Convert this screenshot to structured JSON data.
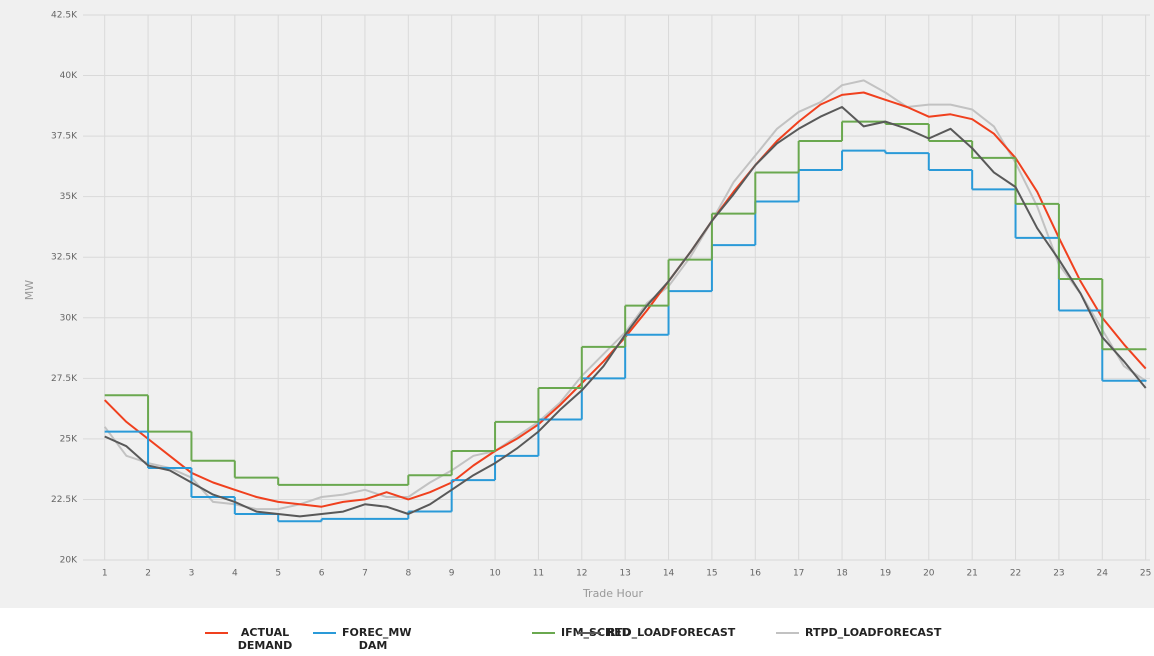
{
  "chart_data": {
    "type": "line",
    "xlabel": "Trade Hour",
    "ylabel": "MW",
    "xlim": [
      0.5,
      25.1
    ],
    "ylim": [
      20000,
      42500
    ],
    "xticks": [
      1,
      2,
      3,
      4,
      5,
      6,
      7,
      8,
      9,
      10,
      11,
      12,
      13,
      14,
      15,
      16,
      17,
      18,
      19,
      20,
      21,
      22,
      23,
      24,
      25
    ],
    "yticks": [
      {
        "value": 20000,
        "label": "20K"
      },
      {
        "value": 22500,
        "label": "22.5K"
      },
      {
        "value": 25000,
        "label": "25K"
      },
      {
        "value": 27500,
        "label": "27.5K"
      },
      {
        "value": 30000,
        "label": "30K"
      },
      {
        "value": 32500,
        "label": "32.5K"
      },
      {
        "value": 35000,
        "label": "35K"
      },
      {
        "value": 37500,
        "label": "37.5K"
      },
      {
        "value": 40000,
        "label": "40K"
      },
      {
        "value": 42500,
        "label": "42.5K"
      }
    ],
    "grid": true,
    "legend": "bottom",
    "series": [
      {
        "name": "ACTUAL DEMAND",
        "color": "#f0401e",
        "drawstyle": "default",
        "x": [
          1,
          1.5,
          2,
          2.5,
          3,
          3.5,
          4,
          4.5,
          5,
          5.5,
          6,
          6.5,
          7,
          7.5,
          8,
          8.5,
          9,
          9.5,
          10,
          10.5,
          11,
          11.5,
          12,
          12.5,
          13,
          13.5,
          14,
          14.5,
          15,
          15.5,
          16,
          16.5,
          17,
          17.5,
          18,
          18.5,
          19,
          19.5,
          20,
          20.5,
          21,
          21.5,
          22,
          22.5,
          23,
          23.5,
          24,
          24.5,
          25
        ],
        "values": [
          26600,
          25700,
          25000,
          24300,
          23600,
          23200,
          22900,
          22600,
          22400,
          22300,
          22200,
          22400,
          22500,
          22800,
          22500,
          22800,
          23200,
          23900,
          24500,
          25000,
          25600,
          26400,
          27300,
          28200,
          29200,
          30300,
          31500,
          32700,
          34000,
          35200,
          36300,
          37300,
          38100,
          38800,
          39200,
          39300,
          39000,
          38700,
          38300,
          38400,
          38200,
          37600,
          36600,
          35200,
          33300,
          31500,
          30000,
          28900,
          27900
        ]
      },
      {
        "name": "FOREC_MW DAM",
        "color": "#2a9ad8",
        "drawstyle": "steps-post",
        "x": [
          1,
          2,
          3,
          4,
          5,
          6,
          7,
          8,
          9,
          10,
          11,
          12,
          13,
          14,
          15,
          16,
          17,
          18,
          19,
          20,
          21,
          22,
          23,
          24,
          25
        ],
        "values": [
          25300,
          23800,
          22600,
          21900,
          21600,
          21700,
          21700,
          22000,
          23300,
          24300,
          25800,
          27500,
          29300,
          31100,
          33000,
          34800,
          36100,
          36900,
          36800,
          36100,
          35300,
          33300,
          30300,
          27400,
          27400
        ]
      },
      {
        "name": "IFM_SCHED",
        "color": "#6aa84f",
        "drawstyle": "steps-post",
        "x": [
          1,
          2,
          3,
          4,
          5,
          6,
          7,
          8,
          9,
          10,
          11,
          12,
          13,
          14,
          15,
          16,
          17,
          18,
          19,
          20,
          21,
          22,
          23,
          24,
          25
        ],
        "values": [
          26800,
          25300,
          24100,
          23400,
          23100,
          23100,
          23100,
          23500,
          24500,
          25700,
          27100,
          28800,
          30500,
          32400,
          34300,
          36000,
          37300,
          38100,
          38000,
          37300,
          36600,
          34700,
          31600,
          28700,
          28700
        ]
      },
      {
        "name": "RTD_LOADFORECAST",
        "color": "#595959",
        "drawstyle": "default",
        "x": [
          1,
          1.5,
          2,
          2.5,
          3,
          3.5,
          4,
          4.5,
          5,
          5.5,
          6,
          6.5,
          7,
          7.5,
          8,
          8.5,
          9,
          9.5,
          10,
          10.5,
          11,
          11.5,
          12,
          12.5,
          13,
          13.5,
          14,
          14.5,
          15,
          15.5,
          16,
          16.5,
          17,
          17.5,
          18,
          18.5,
          19,
          19.5,
          20,
          20.5,
          21,
          21.5,
          22,
          22.5,
          23,
          23.5,
          24,
          24.5,
          25
        ],
        "values": [
          25100,
          24700,
          23900,
          23700,
          23200,
          22700,
          22400,
          22000,
          21900,
          21800,
          21900,
          22000,
          22300,
          22200,
          21900,
          22300,
          22900,
          23500,
          24000,
          24600,
          25300,
          26200,
          27000,
          28000,
          29300,
          30500,
          31500,
          32700,
          34000,
          35100,
          36300,
          37200,
          37800,
          38300,
          38700,
          37900,
          38100,
          37800,
          37400,
          37800,
          37000,
          36000,
          35400,
          33700,
          32400,
          31000,
          29200,
          28200,
          27100
        ]
      },
      {
        "name": "RTPD_LOADFORECAST",
        "color": "#c2c2c2",
        "drawstyle": "default",
        "x": [
          1,
          1.5,
          2,
          2.5,
          3,
          3.5,
          4,
          4.5,
          5,
          5.5,
          6,
          6.5,
          7,
          7.5,
          8,
          8.5,
          9,
          9.5,
          10,
          10.5,
          11,
          11.5,
          12,
          12.5,
          13,
          13.5,
          14,
          14.5,
          15,
          15.5,
          16,
          16.5,
          17,
          17.5,
          18,
          18.5,
          19,
          19.5,
          20,
          20.5,
          21,
          21.5,
          22,
          22.5,
          23,
          23.5,
          24,
          24.5,
          25
        ],
        "values": [
          25500,
          24300,
          24000,
          23800,
          23400,
          22400,
          22300,
          22100,
          22100,
          22300,
          22600,
          22700,
          22900,
          22600,
          22600,
          23200,
          23700,
          24300,
          24500,
          25100,
          25700,
          26500,
          27600,
          28500,
          29400,
          30600,
          31300,
          32500,
          34000,
          35600,
          36700,
          37800,
          38500,
          38900,
          39600,
          39800,
          39300,
          38700,
          38800,
          38800,
          38600,
          37900,
          36400,
          34600,
          32200,
          31000,
          29500,
          28000,
          27400
        ]
      }
    ]
  }
}
